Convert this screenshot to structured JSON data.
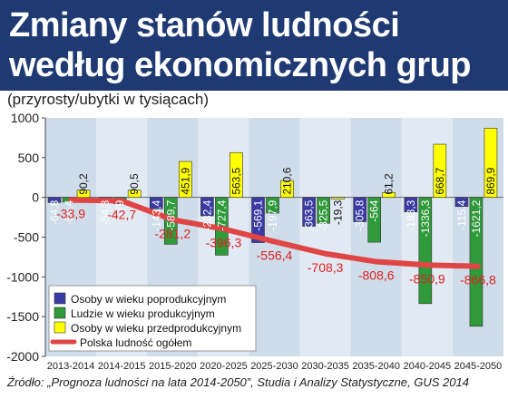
{
  "header": {
    "title": "Zmiany stanów ludności według ekonomicznych grup wieku",
    "subtitle": "(przyrosty/ubytki w tysiącach)"
  },
  "source": "Źródło: „Prognoza ludności na lata 2014-2050”, Studia i Analizy Statystyczne, GUS 2014",
  "colors": {
    "header_bg": "#1f3a73",
    "plot_bg": "#cfdcea",
    "post": "#3a3aa3",
    "working": "#2e9a3a",
    "pre": "#ffff00",
    "total": "#e04545"
  },
  "chart_data": {
    "type": "bar",
    "categories": [
      "2013-2014",
      "2014-2015",
      "2015-2020",
      "2020-2025",
      "2025-2030",
      "2030-2035",
      "2035-2040",
      "2040-2045",
      "2045-2050"
    ],
    "series": [
      {
        "name": "Osoby w wieku poprodukcyjnym",
        "values": [
          -64.8,
          -54.3,
          -143.4,
          -232.4,
          -569.1,
          -363.5,
          -305.8,
          -183.3,
          -115.4
        ],
        "labels": [
          "-64,8",
          "-54,3",
          "-143,4",
          "-232,4",
          "-569,1",
          "-363,5",
          "-305,8",
          "-183,3",
          "-115,4"
        ]
      },
      {
        "name": "Ludzie w wieku produkcyjnym",
        "values": [
          -59.4,
          -79,
          -589.7,
          -727.4,
          -197.9,
          -325.5,
          -564,
          -1336.3,
          -1621.2
        ],
        "labels": [
          "-59,4",
          "-79",
          "-589,7",
          "-727,4",
          "-197,9",
          "-325,5",
          "-564",
          "-1336,3",
          "-1621,2"
        ]
      },
      {
        "name": "Osoby w wieku przedprodukcyjnym",
        "values": [
          90.2,
          90.5,
          451.9,
          563.5,
          210.6,
          -19.3,
          61.2,
          668.7,
          869.9
        ],
        "labels": [
          "90,2",
          "90,5",
          "451,9",
          "563,5",
          "210,6",
          "-19,3",
          "61,2",
          "668,7",
          "869,9"
        ]
      }
    ],
    "total": {
      "name": "Polska ludność ogółem",
      "values": [
        -33.9,
        -42.7,
        -281.2,
        -396.3,
        -556.4,
        -708.3,
        -808.6,
        -850.9,
        -866.8
      ],
      "labels": [
        "-33,9",
        "-42,7",
        "-281,2",
        "-396,3",
        "-556,4",
        "-708,3",
        "-808,6",
        "-850,9",
        "-866,8"
      ]
    },
    "ylim": [
      -2000,
      1000
    ],
    "yticks": [
      1000,
      500,
      0,
      -500,
      -1000,
      -1500,
      -2000
    ],
    "ytick_labels": [
      "1000",
      "500",
      "0",
      "-500",
      "-1000",
      "-1500",
      "-2000"
    ],
    "legend_position": "bottom-left",
    "grid": false
  }
}
